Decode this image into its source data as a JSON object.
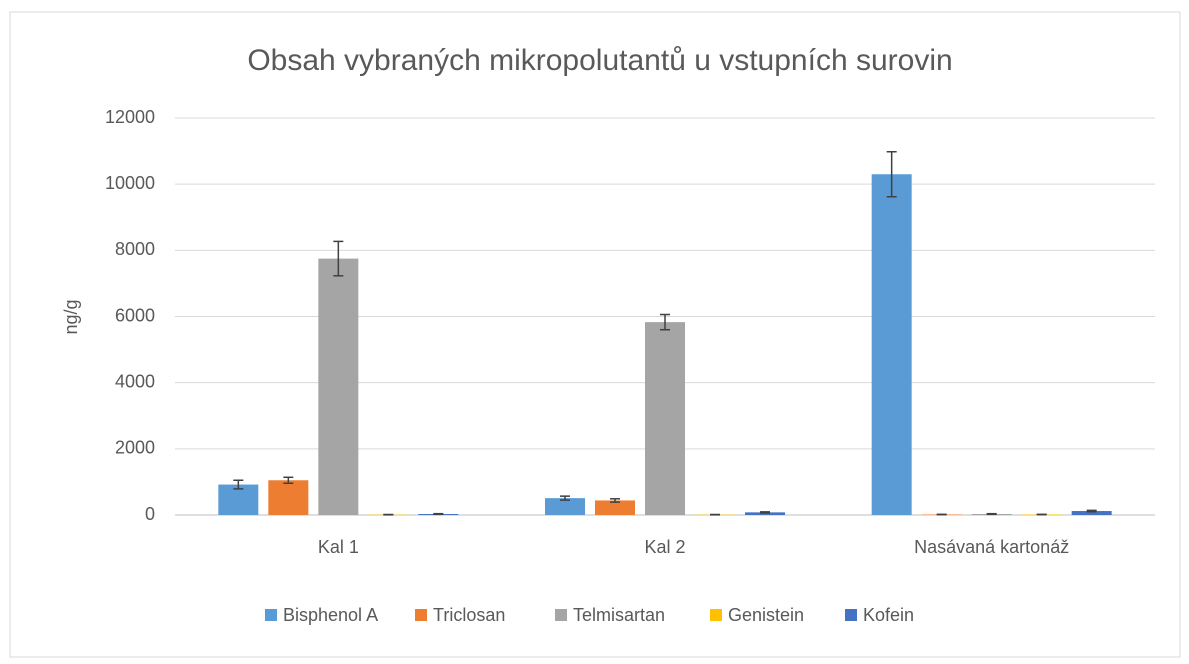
{
  "chart_data": {
    "type": "bar",
    "title": "Obsah vybraných mikropolutantů u vstupních surovin",
    "y_label": "ng/g",
    "categories": [
      "Kal 1",
      "Kal 2",
      "Nasávaná kartonáž"
    ],
    "series": [
      {
        "name": "Bisphenol A",
        "color": "#5b9bd5",
        "values": [
          920,
          510,
          10300
        ],
        "errors": [
          130,
          60,
          680
        ]
      },
      {
        "name": "Triclosan",
        "color": "#ed7d31",
        "values": [
          1050,
          440,
          15
        ],
        "errors": [
          90,
          50,
          5
        ]
      },
      {
        "name": "Telmisartan",
        "color": "#a5a5a5",
        "values": [
          7750,
          5830,
          30
        ],
        "errors": [
          520,
          230,
          10
        ]
      },
      {
        "name": "Genistein",
        "color": "#ffc000",
        "values": [
          10,
          10,
          15
        ],
        "errors": [
          5,
          5,
          5
        ]
      },
      {
        "name": "Kofein",
        "color": "#4472c4",
        "values": [
          30,
          80,
          120
        ],
        "errors": [
          10,
          15,
          20
        ]
      }
    ],
    "ylim": [
      0,
      12000
    ],
    "yticks": [
      0,
      2000,
      4000,
      6000,
      8000,
      10000,
      12000
    ],
    "grid": true,
    "legend": "bottom"
  }
}
